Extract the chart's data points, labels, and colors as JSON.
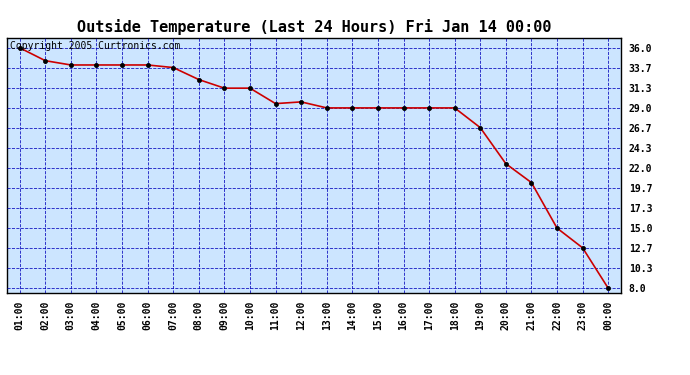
{
  "title": "Outside Temperature (Last 24 Hours) Fri Jan 14 00:00",
  "copyright_text": "Copyright 2005 Curtronics.com",
  "x_labels": [
    "01:00",
    "02:00",
    "03:00",
    "04:00",
    "05:00",
    "06:00",
    "07:00",
    "08:00",
    "09:00",
    "10:00",
    "11:00",
    "12:00",
    "13:00",
    "14:00",
    "15:00",
    "16:00",
    "17:00",
    "18:00",
    "19:00",
    "20:00",
    "21:00",
    "22:00",
    "23:00",
    "00:00"
  ],
  "x_values": [
    1,
    2,
    3,
    4,
    5,
    6,
    7,
    8,
    9,
    10,
    11,
    12,
    13,
    14,
    15,
    16,
    17,
    18,
    19,
    20,
    21,
    22,
    23,
    24
  ],
  "y_values": [
    36.0,
    34.5,
    34.0,
    34.0,
    34.0,
    34.0,
    33.7,
    32.3,
    31.3,
    31.3,
    29.5,
    29.7,
    29.0,
    29.0,
    29.0,
    29.0,
    29.0,
    29.0,
    26.7,
    22.5,
    20.3,
    15.0,
    12.7,
    8.0
  ],
  "y_ticks": [
    8.0,
    10.3,
    12.7,
    15.0,
    17.3,
    19.7,
    22.0,
    24.3,
    26.7,
    29.0,
    31.3,
    33.7,
    36.0
  ],
  "ylim_min": 7.5,
  "ylim_max": 37.2,
  "line_color": "#cc0000",
  "marker_color": "#000000",
  "bg_color": "#cce5ff",
  "grid_color": "#0000bb",
  "title_fontsize": 11,
  "tick_fontsize": 7,
  "copyright_fontsize": 7,
  "fig_width": 6.9,
  "fig_height": 3.75,
  "dpi": 100
}
